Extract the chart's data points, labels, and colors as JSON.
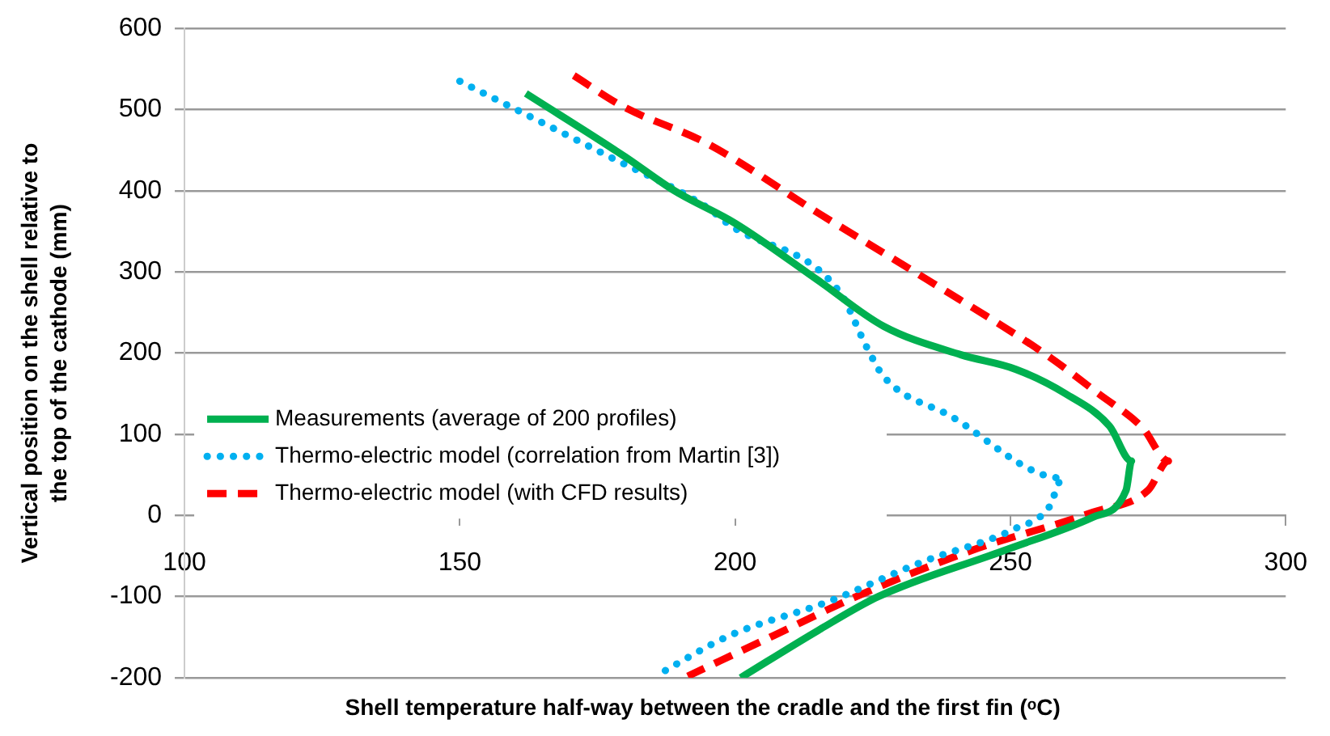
{
  "chart_data": {
    "type": "line",
    "xlabel": "Shell temperature half-way between the cradle and the first fin (ᵒC)",
    "ylabel": "Vertical position on the shell relative to the top of the cathode (mm)",
    "xlim": [
      100,
      300
    ],
    "xticks": [
      100,
      150,
      200,
      250,
      300
    ],
    "ylim": [
      -200,
      600
    ],
    "yticks": [
      -200,
      -100,
      0,
      100,
      200,
      300,
      400,
      500,
      600
    ],
    "grid": "y",
    "legend": "left",
    "marker": "none",
    "series": [
      {
        "name": "Measurements (average of 200 profiles)",
        "color": "#00b050",
        "line_style": "solid",
        "x": [
          162,
          180,
          189,
          200,
          215,
          227,
          241,
          251,
          260,
          268,
          272,
          271,
          265,
          248.5,
          226,
          215,
          201
        ],
        "values": [
          520,
          442,
          400,
          360,
          290,
          233,
          198,
          180,
          150,
          110,
          67,
          31,
          -2,
          -44,
          -100,
          -142,
          -200
        ]
      },
      {
        "name": "Thermo-electric model (correlation from Martin [3])",
        "color": "#00b0f0",
        "line_style": "dotted",
        "x": [
          150,
          176,
          195,
          199,
          219,
          224,
          227,
          239,
          259.5,
          257,
          250.6,
          233.7,
          217,
          199,
          185.5
        ],
        "values": [
          535,
          446,
          379,
          358,
          275,
          206,
          171,
          123,
          46,
          10,
          -17,
          -58,
          -106,
          -148,
          -198
        ]
      },
      {
        "name": "Thermo-electric model (with CFD results)",
        "color": "#ff0000",
        "line_style": "dashed",
        "x": [
          170.7,
          179.6,
          195,
          215,
          235,
          256.5,
          266,
          274,
          278.7,
          275,
          265,
          242.6,
          222,
          207,
          191.4
        ],
        "values": [
          542,
          504,
          458,
          373,
          290,
          198,
          150,
          108,
          67,
          31,
          4,
          -44,
          -100,
          -148,
          -198
        ]
      }
    ]
  }
}
